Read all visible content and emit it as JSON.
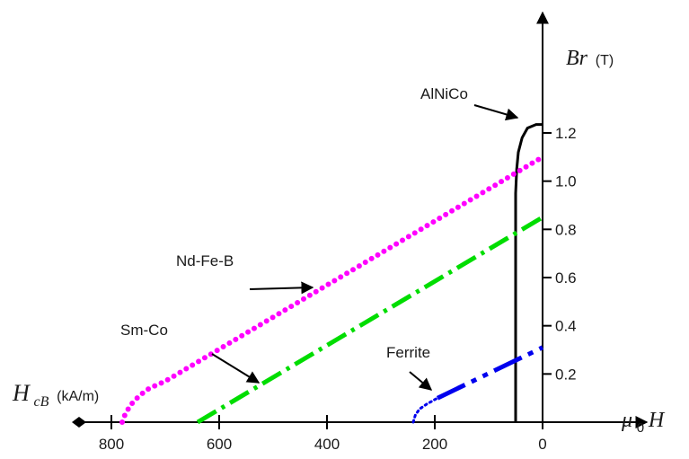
{
  "chart_data": {
    "type": "line",
    "title": "",
    "xaxis": {
      "label_main": "H",
      "label_sub": "cB",
      "unit": "(kA/m)",
      "tick_labels": [
        "800",
        "600",
        "400",
        "200",
        "0"
      ],
      "ticks": [
        800,
        600,
        400,
        200,
        0
      ],
      "range": [
        900,
        0
      ],
      "reversed": true
    },
    "yaxis": {
      "label_main": "Br",
      "unit": "(T)",
      "tick_labels": [
        "0.2",
        "0.4",
        "0.6",
        "0.8",
        "1.0",
        "1.2"
      ],
      "ticks": [
        0.2,
        0.4,
        0.6,
        0.8,
        1.0,
        1.2
      ],
      "range": [
        0,
        1.38
      ]
    },
    "right_axis_label": {
      "mu": "μ",
      "sub": "0",
      "H": "H"
    },
    "series": [
      {
        "name": "AlNiCo",
        "color": "#000000",
        "style": "solid",
        "points": [
          [
            50,
            0
          ],
          [
            50,
            0.95
          ],
          [
            48,
            1.05
          ],
          [
            45,
            1.12
          ],
          [
            38,
            1.18
          ],
          [
            28,
            1.22
          ],
          [
            12,
            1.235
          ],
          [
            0,
            1.235
          ]
        ]
      },
      {
        "name": "Nd-Fe-B",
        "color": "#ff00ff",
        "style": "dotted",
        "points": [
          [
            780,
            0
          ],
          [
            775,
            0.03
          ],
          [
            765,
            0.07
          ],
          [
            748,
            0.11
          ],
          [
            730,
            0.14
          ],
          [
            700,
            0.17
          ],
          [
            0,
            1.1
          ]
        ]
      },
      {
        "name": "Sm-Co",
        "color": "#00dd00",
        "style": "dashdot",
        "points": [
          [
            640,
            0
          ],
          [
            0,
            0.85
          ]
        ]
      },
      {
        "name": "Ferrite",
        "color": "#0000ee",
        "style": "mixed",
        "points": [
          [
            240,
            0
          ],
          [
            236,
            0.03
          ],
          [
            228,
            0.055
          ],
          [
            215,
            0.075
          ],
          [
            195,
            0.1
          ],
          [
            0,
            0.31
          ]
        ]
      }
    ]
  }
}
